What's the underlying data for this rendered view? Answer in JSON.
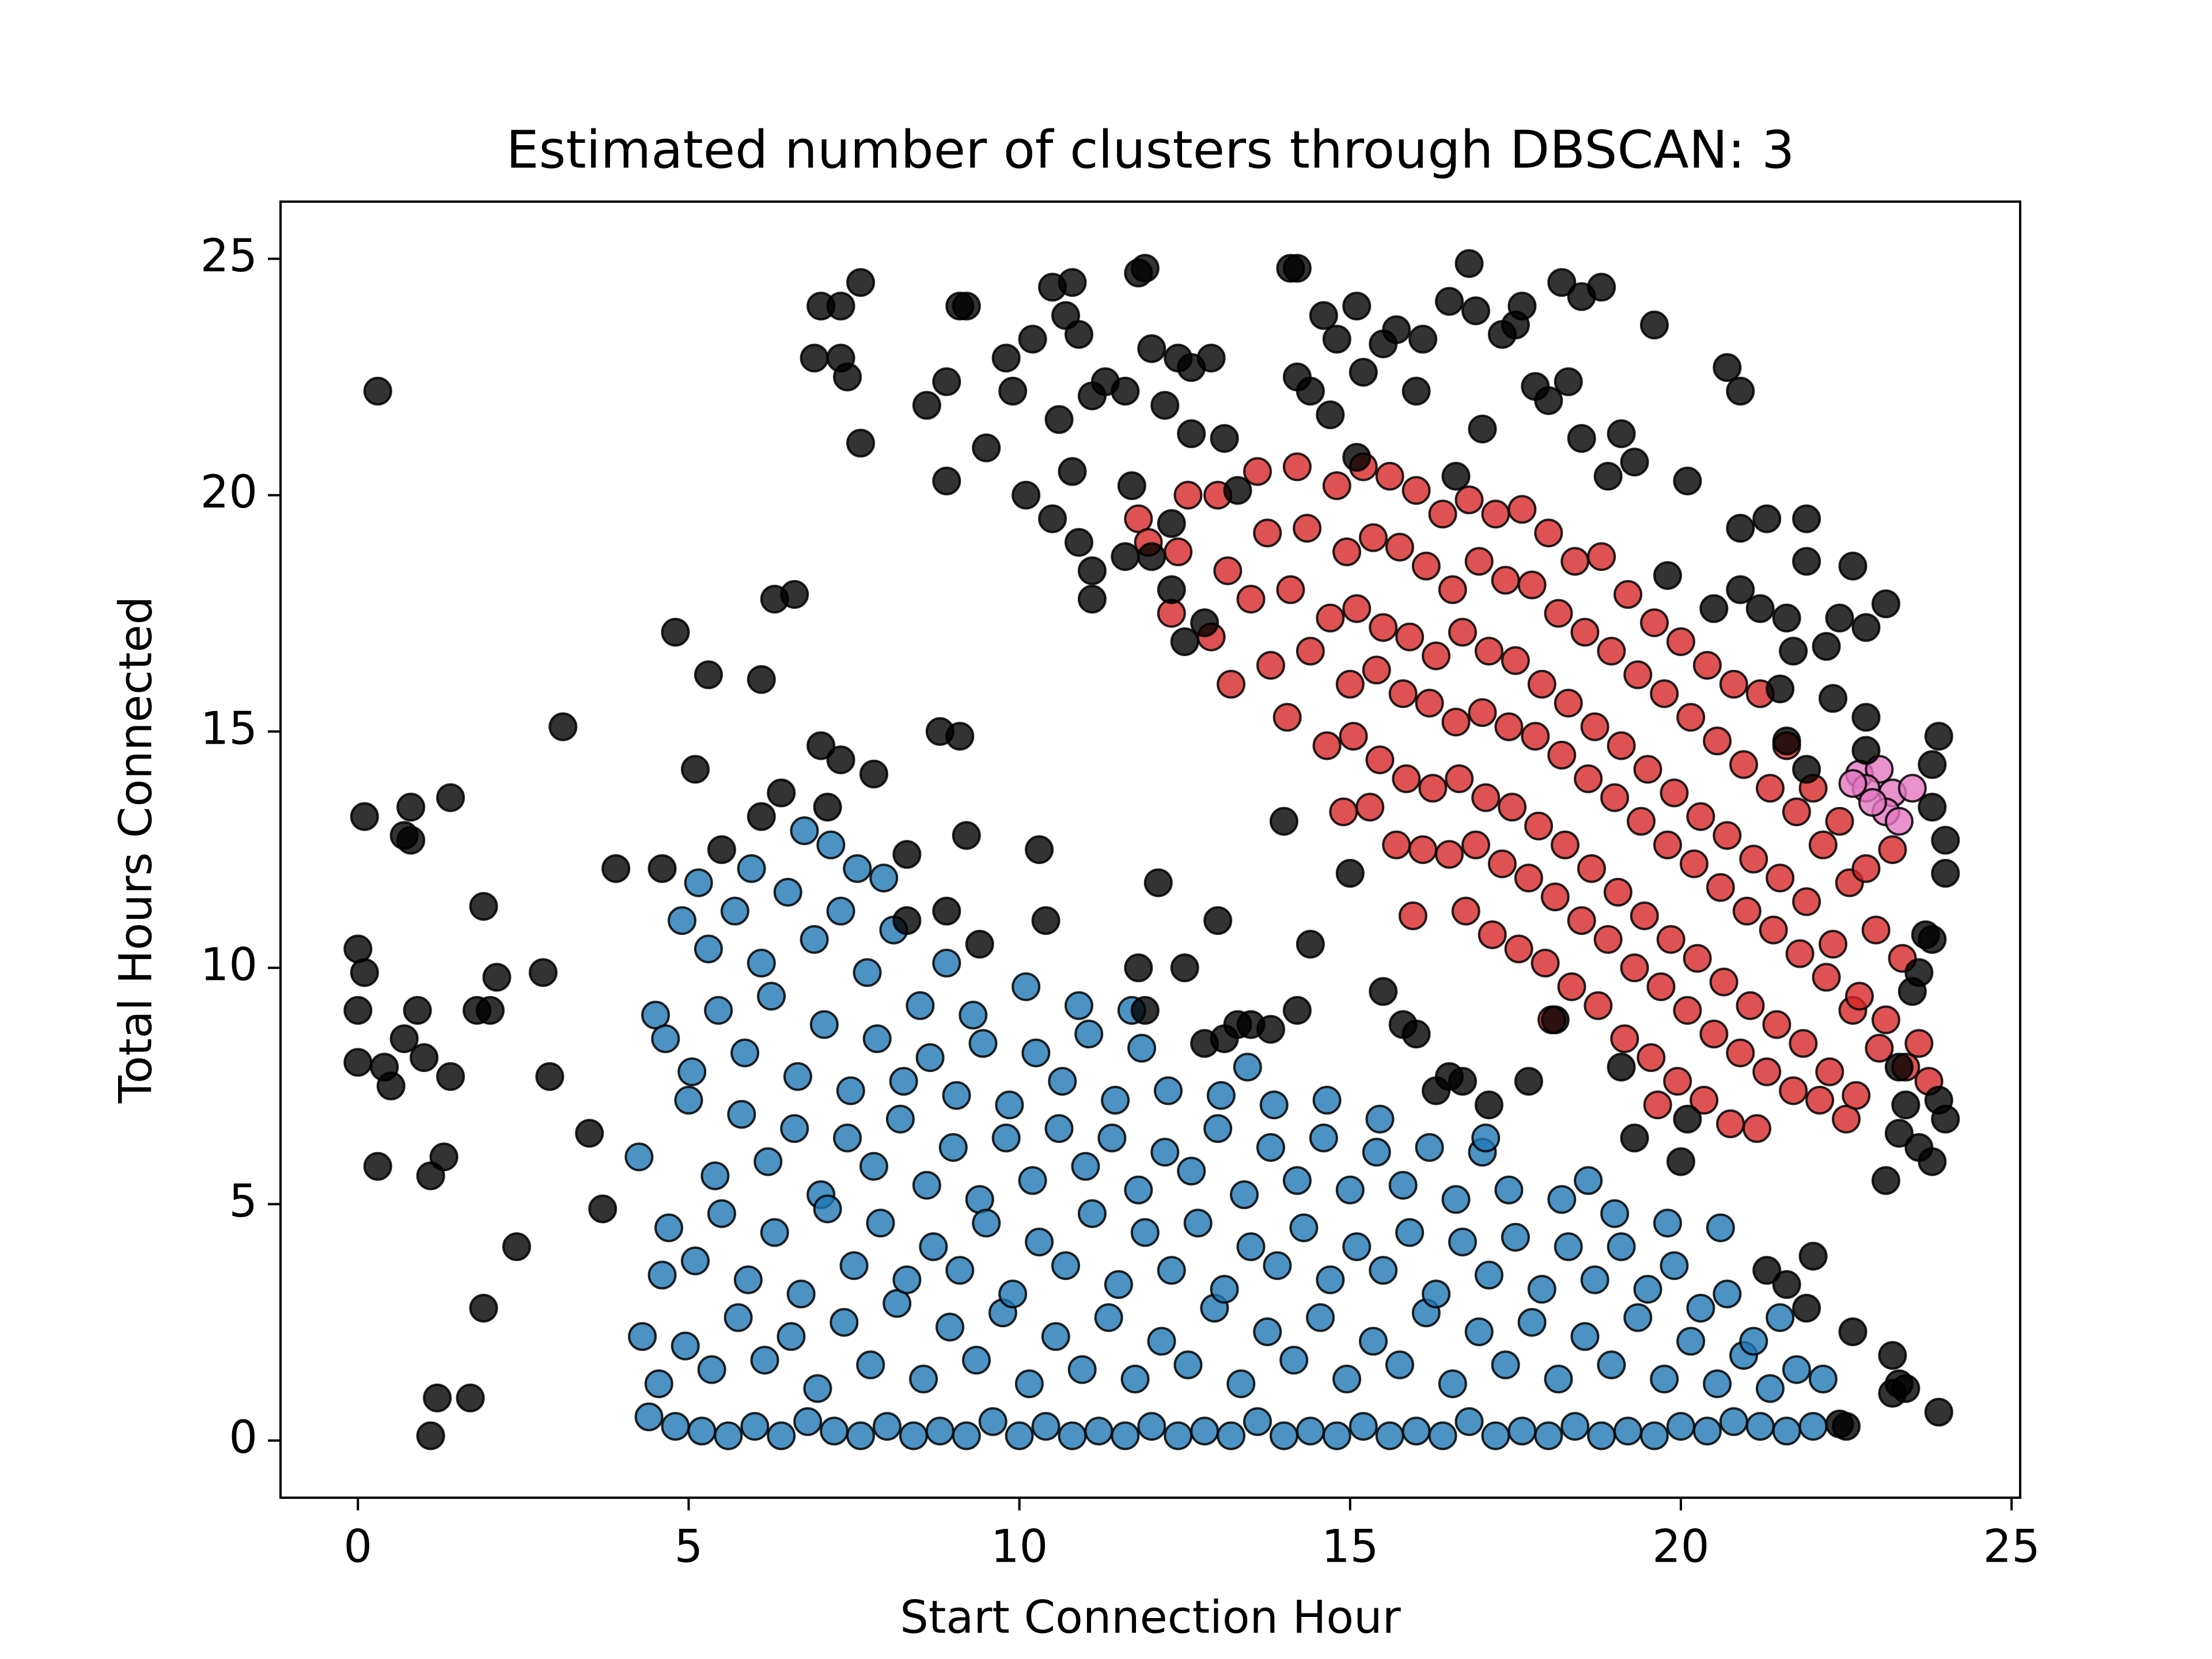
{
  "chart_data": {
    "type": "scatter",
    "title": "Estimated number of clusters through DBSCAN: 3",
    "xlabel": "Start Connection Hour",
    "ylabel": "Total Hours Connected",
    "xlim": [
      -1.17,
      25.13
    ],
    "ylim": [
      -1.21,
      26.21
    ],
    "xticks": [
      0,
      5,
      10,
      15,
      20,
      25
    ],
    "yticks": [
      0,
      5,
      10,
      15,
      20,
      25
    ],
    "grid": false,
    "series": [
      {
        "color": "#1f77b4",
        "x": [
          4.4,
          4.55,
          4.3,
          4.6,
          4.25,
          4.5,
          4.8,
          4.95,
          4.7,
          5,
          4.65,
          4.9,
          5.2,
          5.35,
          5.1,
          5.4,
          5.05,
          5.3,
          5.15,
          5.6,
          5.75,
          5.5,
          5.8,
          5.45,
          5.7,
          6,
          6.15,
          5.9,
          6.2,
          5.85,
          6.1,
          5.95,
          6.4,
          6.55,
          6.3,
          6.6,
          6.25,
          6.5,
          6.8,
          6.95,
          6.7,
          7,
          6.65,
          6.9,
          6.75,
          7.2,
          7.35,
          7.1,
          7.4,
          7.05,
          7.3,
          7.15,
          7.6,
          7.75,
          7.5,
          7.8,
          7.45,
          7.7,
          7.55,
          8,
          8.15,
          7.9,
          8.2,
          7.85,
          8.1,
          7.95,
          8.4,
          8.55,
          8.3,
          8.6,
          8.25,
          8.5,
          8.8,
          8.95,
          8.7,
          9,
          8.65,
          8.9,
          9.2,
          9.35,
          9.1,
          9.4,
          9.05,
          9.3,
          9.6,
          9.75,
          9.5,
          9.8,
          9.45,
          10,
          10.15,
          9.9,
          10.2,
          9.85,
          10.1,
          10.4,
          10.55,
          10.3,
          10.6,
          10.25,
          10.8,
          10.95,
          10.7,
          11,
          10.65,
          10.9,
          11.2,
          11.35,
          11.1,
          11.4,
          11.05,
          11.6,
          11.75,
          11.5,
          11.8,
          11.45,
          11.7,
          12,
          12.15,
          11.9,
          12.2,
          11.85,
          12.4,
          12.55,
          12.3,
          12.6,
          12.25,
          12.8,
          12.95,
          12.7,
          13,
          13.2,
          13.35,
          13.1,
          13.4,
          13.05,
          13.6,
          13.75,
          13.5,
          13.8,
          13.45,
          14,
          14.15,
          13.9,
          14.2,
          13.85,
          14.4,
          14.55,
          14.3,
          14.6,
          14.8,
          14.95,
          14.7,
          15,
          14.65,
          15.2,
          15.35,
          15.1,
          15.4,
          15.6,
          15.75,
          15.5,
          15.8,
          15.45,
          16,
          16.15,
          15.9,
          16.2,
          16.4,
          16.55,
          16.3,
          16.6,
          16.8,
          16.95,
          16.7,
          17,
          17.2,
          17.35,
          17.1,
          17.4,
          17.05,
          17.6,
          17.75,
          17.5,
          18,
          18.15,
          17.9,
          18.2,
          18.4,
          18.55,
          18.3,
          18.6,
          18.8,
          18.95,
          18.7,
          19,
          19.2,
          19.35,
          19.1,
          19.6,
          19.75,
          19.5,
          19.8,
          20,
          20.15,
          19.9,
          20.4,
          20.55,
          20.3,
          20.6,
          20.8,
          20.95,
          20.7,
          21.2,
          21.35,
          21.1,
          21.6,
          21.75,
          21.5,
          22,
          22.15
        ],
        "values": [
          0.5,
          1.2,
          2.2,
          3.5,
          6,
          9,
          0.3,
          2,
          4.5,
          7.2,
          8.5,
          11,
          0.2,
          1.5,
          3.8,
          5.6,
          7.8,
          10.4,
          11.8,
          0.1,
          2.6,
          4.8,
          6.9,
          9.1,
          11.2,
          0.3,
          1.7,
          3.4,
          5.9,
          8.2,
          10.1,
          12.1,
          0.1,
          2.2,
          4.4,
          6.6,
          9.4,
          11.6,
          0.4,
          1.1,
          3.1,
          5.2,
          7.7,
          10.6,
          12.9,
          0.2,
          2.5,
          4.9,
          6.4,
          8.8,
          11.2,
          12.6,
          0.1,
          1.6,
          3.7,
          5.8,
          7.4,
          9.9,
          12.1,
          0.3,
          2.9,
          4.6,
          6.8,
          8.5,
          10.8,
          11.9,
          0.1,
          1.3,
          3.4,
          5.4,
          7.6,
          9.2,
          0.2,
          2.4,
          4.1,
          6.2,
          8.1,
          10.1,
          0.1,
          1.7,
          3.6,
          5.1,
          7.3,
          9,
          0.4,
          2.7,
          4.6,
          6.4,
          8.4,
          0.1,
          1.2,
          3.1,
          5.5,
          7.1,
          9.6,
          0.3,
          2.2,
          4.2,
          6.6,
          8.2,
          0.1,
          1.5,
          3.7,
          5.8,
          7.6,
          9.2,
          0.2,
          2.6,
          4.8,
          6.4,
          8.6,
          0.1,
          1.3,
          3.3,
          5.3,
          7.2,
          9.1,
          0.3,
          2.1,
          4.4,
          6.1,
          8.3,
          0.1,
          1.6,
          3.6,
          5.7,
          7.4,
          0.2,
          2.8,
          4.6,
          6.6,
          0.1,
          1.2,
          3.2,
          5.2,
          7.3,
          0.4,
          2.3,
          4.1,
          6.2,
          7.9,
          0.1,
          1.7,
          3.7,
          5.5,
          7.1,
          0.2,
          2.6,
          4.5,
          6.4,
          0.1,
          1.3,
          3.4,
          5.3,
          7.2,
          0.3,
          2.1,
          4.1,
          6.1,
          0.1,
          1.6,
          3.6,
          5.4,
          6.8,
          0.2,
          2.7,
          4.4,
          6.2,
          0.1,
          1.2,
          3.1,
          5.1,
          0.4,
          2.3,
          4.2,
          6.1,
          0.1,
          1.6,
          3.5,
          5.3,
          6.4,
          0.2,
          2.5,
          4.3,
          0.1,
          1.3,
          3.2,
          5.1,
          0.3,
          2.2,
          4.1,
          5.5,
          0.1,
          1.6,
          3.4,
          4.8,
          0.2,
          2.6,
          4.1,
          0.1,
          1.3,
          3.2,
          4.6,
          0.3,
          2.1,
          3.7,
          0.2,
          1.2,
          2.8,
          4.5,
          0.4,
          1.8,
          3.1,
          0.3,
          1.1,
          2.1,
          0.2,
          1.5,
          2.6,
          0.3,
          1.3
        ]
      },
      {
        "color": "#d62728",
        "x": [
          11.8,
          11.95,
          12.4,
          12.55,
          12.3,
          13,
          13.15,
          12.9,
          13.2,
          13.6,
          13.75,
          13.5,
          13.8,
          14.2,
          14.35,
          14.1,
          14.4,
          14.05,
          14.8,
          14.95,
          14.7,
          15,
          14.65,
          14.9,
          15.2,
          15.35,
          15.1,
          15.4,
          15.05,
          15.3,
          15.6,
          15.75,
          15.5,
          15.8,
          15.45,
          15.7,
          16,
          16.15,
          15.9,
          16.2,
          15.85,
          16.1,
          15.95,
          16.4,
          16.55,
          16.3,
          16.6,
          16.25,
          16.5,
          16.8,
          16.95,
          16.7,
          17,
          16.65,
          16.9,
          16.75,
          17.2,
          17.35,
          17.1,
          17.4,
          17.05,
          17.3,
          17.15,
          17.6,
          17.75,
          17.5,
          17.8,
          17.45,
          17.7,
          17.55,
          18,
          18.15,
          17.9,
          18.2,
          17.85,
          18.1,
          17.95,
          18.05,
          18.4,
          18.55,
          18.3,
          18.6,
          18.25,
          18.5,
          18.35,
          18.8,
          18.95,
          18.7,
          19,
          18.65,
          18.9,
          18.75,
          19.2,
          19.35,
          19.1,
          19.4,
          19.05,
          19.3,
          19.15,
          19.6,
          19.75,
          19.5,
          19.8,
          19.45,
          19.7,
          19.55,
          19.65,
          20,
          20.15,
          19.9,
          20.2,
          19.85,
          20.1,
          19.95,
          20.4,
          20.55,
          20.3,
          20.6,
          20.25,
          20.5,
          20.35,
          20.8,
          20.95,
          20.7,
          21,
          20.65,
          20.9,
          20.75,
          21.2,
          21.35,
          21.1,
          21.4,
          21.05,
          21.3,
          21.15,
          21.6,
          21.75,
          21.5,
          21.8,
          21.45,
          21.7,
          22,
          22.15,
          21.9,
          22.2,
          21.85,
          22.1,
          22.4,
          22.55,
          22.3,
          22.6,
          22.25,
          22.5,
          22.8,
          22.95,
          22.7,
          23,
          22.65,
          23.2,
          23.35,
          23.1,
          23.4,
          23.6,
          23.75
        ],
        "values": [
          19.5,
          19,
          18.8,
          20,
          17.5,
          20,
          18.4,
          17,
          16,
          20.5,
          19.2,
          17.8,
          16.4,
          20.6,
          19.3,
          18,
          16.7,
          15.3,
          20.2,
          18.8,
          17.4,
          16,
          14.7,
          13.3,
          20.6,
          19.1,
          17.6,
          16.3,
          14.9,
          13.4,
          20.4,
          18.9,
          17.2,
          15.8,
          14.4,
          12.6,
          20.1,
          18.5,
          17,
          15.6,
          14,
          12.5,
          11.1,
          19.6,
          18,
          16.6,
          15.2,
          13.8,
          12.4,
          19.9,
          18.6,
          17.1,
          15.4,
          14,
          12.6,
          11.2,
          19.6,
          18.2,
          16.7,
          15.1,
          13.6,
          12.2,
          10.7,
          19.7,
          18.1,
          16.5,
          14.9,
          13.4,
          11.9,
          10.4,
          19.2,
          17.5,
          16,
          14.5,
          13,
          11.5,
          10.1,
          8.9,
          18.6,
          17.1,
          15.6,
          14,
          12.6,
          11,
          9.6,
          18.7,
          16.7,
          15.1,
          13.6,
          12.1,
          10.6,
          9.2,
          17.9,
          16.2,
          14.7,
          13.1,
          11.6,
          10,
          8.5,
          17.3,
          15.8,
          14.2,
          12.6,
          11.1,
          9.6,
          8.1,
          7.1,
          16.9,
          15.3,
          13.7,
          12.2,
          10.6,
          9.1,
          7.6,
          16.4,
          14.8,
          13.2,
          11.7,
          10.2,
          8.6,
          7.2,
          16,
          14.3,
          12.8,
          11.2,
          9.7,
          8.2,
          6.7,
          15.8,
          13.8,
          12.3,
          10.8,
          9.2,
          7.8,
          6.6,
          14.7,
          13.3,
          11.9,
          10.3,
          8.8,
          7.4,
          13.8,
          12.6,
          11.4,
          9.8,
          8.4,
          7.2,
          13.1,
          11.8,
          10.5,
          9.1,
          7.8,
          6.8,
          12.1,
          10.8,
          9.4,
          8.3,
          7.3,
          12.5,
          10.2,
          8.9,
          7.9,
          8.4,
          7.6
        ]
      },
      {
        "color": "#e377c2",
        "x": [
          22.7,
          23,
          23.2,
          23.5,
          22.8,
          23.1,
          22.9,
          23.3,
          22.6
        ],
        "values": [
          14.1,
          14.2,
          13.7,
          13.8,
          13.8,
          13.3,
          13.5,
          13.1,
          13.9
        ]
      },
      {
        "color": "#000000",
        "x": [
          0.3,
          0.1,
          0.8,
          0.7,
          1.4,
          0.8,
          0,
          0.1,
          0,
          0,
          0.5,
          0.4,
          0.7,
          1,
          0.9,
          1.4,
          0.3,
          1.1,
          1.3,
          1.9,
          2.1,
          1.8,
          2,
          2.8,
          3.1,
          2.9,
          3.5,
          3.7,
          2.4,
          1.9,
          1.2,
          1.7,
          1.1,
          3.9,
          4.8,
          5.3,
          5.1,
          6.1,
          6.3,
          6.6,
          5.5,
          6.1,
          6.4,
          4.6,
          7,
          7.3,
          7.8,
          7.1,
          8.3,
          8.8,
          9.1,
          9.2,
          8.3,
          8.9,
          9.4,
          10.3,
          10.4,
          7.3,
          7,
          7.6,
          6.9,
          7.3,
          7.4,
          7.6,
          8.6,
          8.9,
          9.1,
          9.2,
          8.9,
          9.5,
          9.8,
          9.9,
          10.2,
          10.5,
          10.7,
          10.8,
          10.9,
          10.6,
          10.1,
          10.5,
          10.8,
          10.9,
          11.1,
          11.1,
          11.3,
          11.1,
          11.6,
          11.8,
          11.9,
          12,
          12.4,
          12.2,
          12.6,
          12.9,
          12.6,
          11.7,
          12.3,
          11.6,
          12,
          12.3,
          12.8,
          12.5,
          13.1,
          13.3,
          14.1,
          14.2,
          14.2,
          14.4,
          14.6,
          14.8,
          15.1,
          15.2,
          14.7,
          15.1,
          15.5,
          15.7,
          16,
          16.1,
          16.5,
          16.8,
          16.9,
          17,
          16.6,
          17.3,
          17.5,
          17.6,
          17.8,
          18,
          18.2,
          18.5,
          18.8,
          18.3,
          18.5,
          19.1,
          19.3,
          18.9,
          19.6,
          20.1,
          20.7,
          20.9,
          20.9,
          21.3,
          21.9,
          21.9,
          22.6,
          19.8,
          20.5,
          20.9,
          21.2,
          21.6,
          21.7,
          22.4,
          22.8,
          22.2,
          23.1,
          22.3,
          22.8,
          21.5,
          21.6,
          21.9,
          22.8,
          23.9,
          23.8,
          23.8,
          24,
          24,
          23.7,
          23.8,
          23.6,
          23.5,
          23.3,
          23.4,
          23.9,
          24,
          23.3,
          23.6,
          23.8,
          23.1,
          13.5,
          13.8,
          13.3,
          14.2,
          13.1,
          12.8,
          12.5,
          13,
          12.1,
          11.8,
          11.9,
          14.4,
          14,
          15,
          15.5,
          15.8,
          16,
          16.3,
          16.5,
          16.7,
          17.1,
          17.7,
          18.1,
          19.1,
          19.3,
          20,
          20.1,
          21.3,
          21.6,
          21.9,
          22.4,
          22.5,
          22.6,
          23.2,
          23.3,
          23.4,
          23.9,
          23.2,
          22
        ],
        "values": [
          22.2,
          13.2,
          13.4,
          12.8,
          13.6,
          12.7,
          10.4,
          9.9,
          9.1,
          8,
          7.5,
          7.9,
          8.5,
          8.1,
          9.1,
          7.7,
          5.8,
          5.6,
          6,
          11.3,
          9.8,
          9.1,
          9.1,
          9.9,
          15.1,
          7.7,
          6.5,
          4.9,
          4.1,
          2.8,
          0.9,
          0.9,
          0.1,
          12.1,
          17.1,
          16.2,
          14.2,
          16.1,
          17.8,
          17.9,
          12.5,
          13.2,
          13.7,
          12.1,
          14.7,
          14.4,
          14.1,
          13.4,
          12.4,
          15,
          14.9,
          12.8,
          11,
          11.2,
          10.5,
          12.5,
          11,
          24,
          24,
          24.5,
          22.9,
          22.9,
          22.5,
          21.1,
          21.9,
          22.4,
          24,
          24,
          20.3,
          21,
          22.9,
          22.2,
          23.3,
          24.4,
          23.8,
          24.5,
          23.4,
          21.6,
          20,
          19.5,
          20.5,
          19,
          18.4,
          17.8,
          22.4,
          22.1,
          22.2,
          24.7,
          24.8,
          23.1,
          22.9,
          21.9,
          22.7,
          22.9,
          21.3,
          20.2,
          19.4,
          18.7,
          18.7,
          18,
          17.3,
          16.9,
          21.2,
          20.1,
          24.8,
          24.8,
          22.5,
          22.2,
          23.8,
          23.3,
          24,
          22.6,
          21.7,
          20.8,
          23.2,
          23.5,
          22.2,
          23.3,
          24.1,
          24.9,
          23.9,
          21.4,
          20.4,
          23.4,
          23.6,
          24,
          22.3,
          22,
          24.5,
          24.2,
          24.4,
          22.4,
          21.2,
          21.3,
          20.7,
          20.4,
          23.6,
          20.3,
          22.7,
          22.2,
          19.3,
          19.5,
          19.5,
          18.6,
          18.5,
          18.3,
          17.6,
          18,
          17.6,
          17.4,
          16.7,
          17.4,
          17.2,
          16.8,
          17.7,
          15.7,
          15.3,
          15.9,
          14.8,
          14.2,
          14.6,
          14.9,
          14.3,
          13.4,
          12.7,
          12,
          10.7,
          10.6,
          9.9,
          9.5,
          7.9,
          7.1,
          7.2,
          6.8,
          6.5,
          6.2,
          5.9,
          5.5,
          8.8,
          8.7,
          8.8,
          9.1,
          8.5,
          8.4,
          10,
          11,
          11.8,
          10,
          9.1,
          10.5,
          13.1,
          12,
          9.5,
          8.8,
          8.6,
          7.4,
          7.7,
          7.6,
          7.1,
          7.6,
          8.9,
          7.9,
          6.4,
          5.9,
          6.8,
          3.6,
          3.3,
          2.8,
          0.35,
          0.3,
          2.3,
          1.8,
          1.2,
          1.1,
          0.6,
          1,
          3.9
        ]
      }
    ]
  }
}
